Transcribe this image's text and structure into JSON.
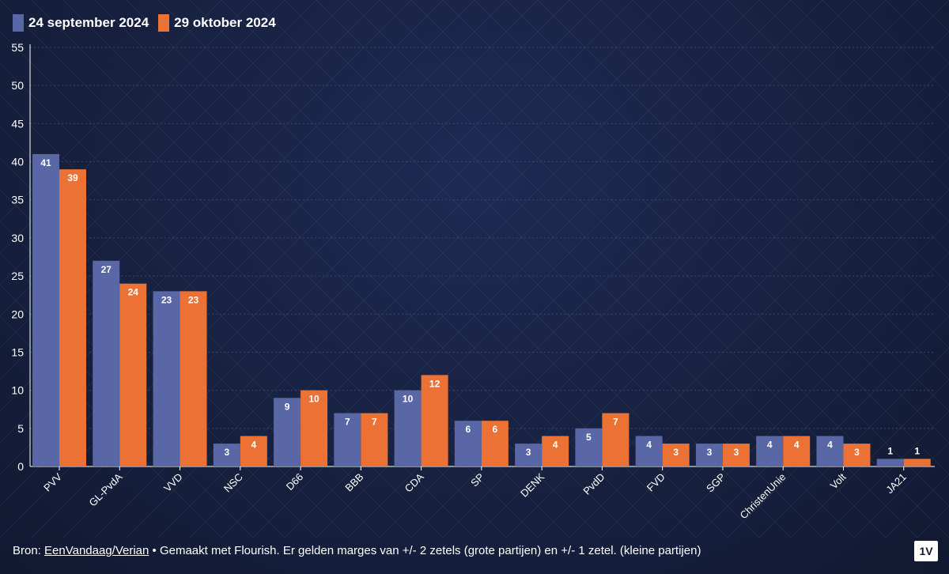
{
  "colors": {
    "series1": "#5a67a6",
    "series2": "#ec7134",
    "grid": "#3a4670",
    "axis": "#ffffff"
  },
  "chart_data": {
    "type": "bar",
    "categories": [
      "PVV",
      "GL-PvdA",
      "VVD",
      "NSC",
      "D66",
      "BBB",
      "CDA",
      "SP",
      "DENK",
      "PvdD",
      "FVD",
      "SGP",
      "ChristenUnie",
      "Volt",
      "JA21"
    ],
    "series": [
      {
        "name": "24 september 2024",
        "values": [
          41,
          27,
          23,
          3,
          9,
          7,
          10,
          6,
          3,
          5,
          4,
          3,
          4,
          4,
          1
        ]
      },
      {
        "name": "29 oktober 2024",
        "values": [
          39,
          24,
          23,
          4,
          10,
          7,
          12,
          6,
          4,
          7,
          3,
          3,
          4,
          3,
          1
        ]
      }
    ],
    "yticks": [
      "0",
      "5",
      "10",
      "15",
      "20",
      "25",
      "30",
      "35",
      "40",
      "45",
      "50",
      "55"
    ],
    "ylim": [
      0,
      55
    ],
    "legend_position": "top-left",
    "grid": true
  },
  "footer": {
    "prefix": "Bron: ",
    "link": "EenVandaag/Verian",
    "rest": " • Gemaakt met Flourish. Er gelden marges van +/- 2 zetels (grote partijen) en +/- 1 zetel. (kleine partijen)"
  },
  "logo": "1V"
}
